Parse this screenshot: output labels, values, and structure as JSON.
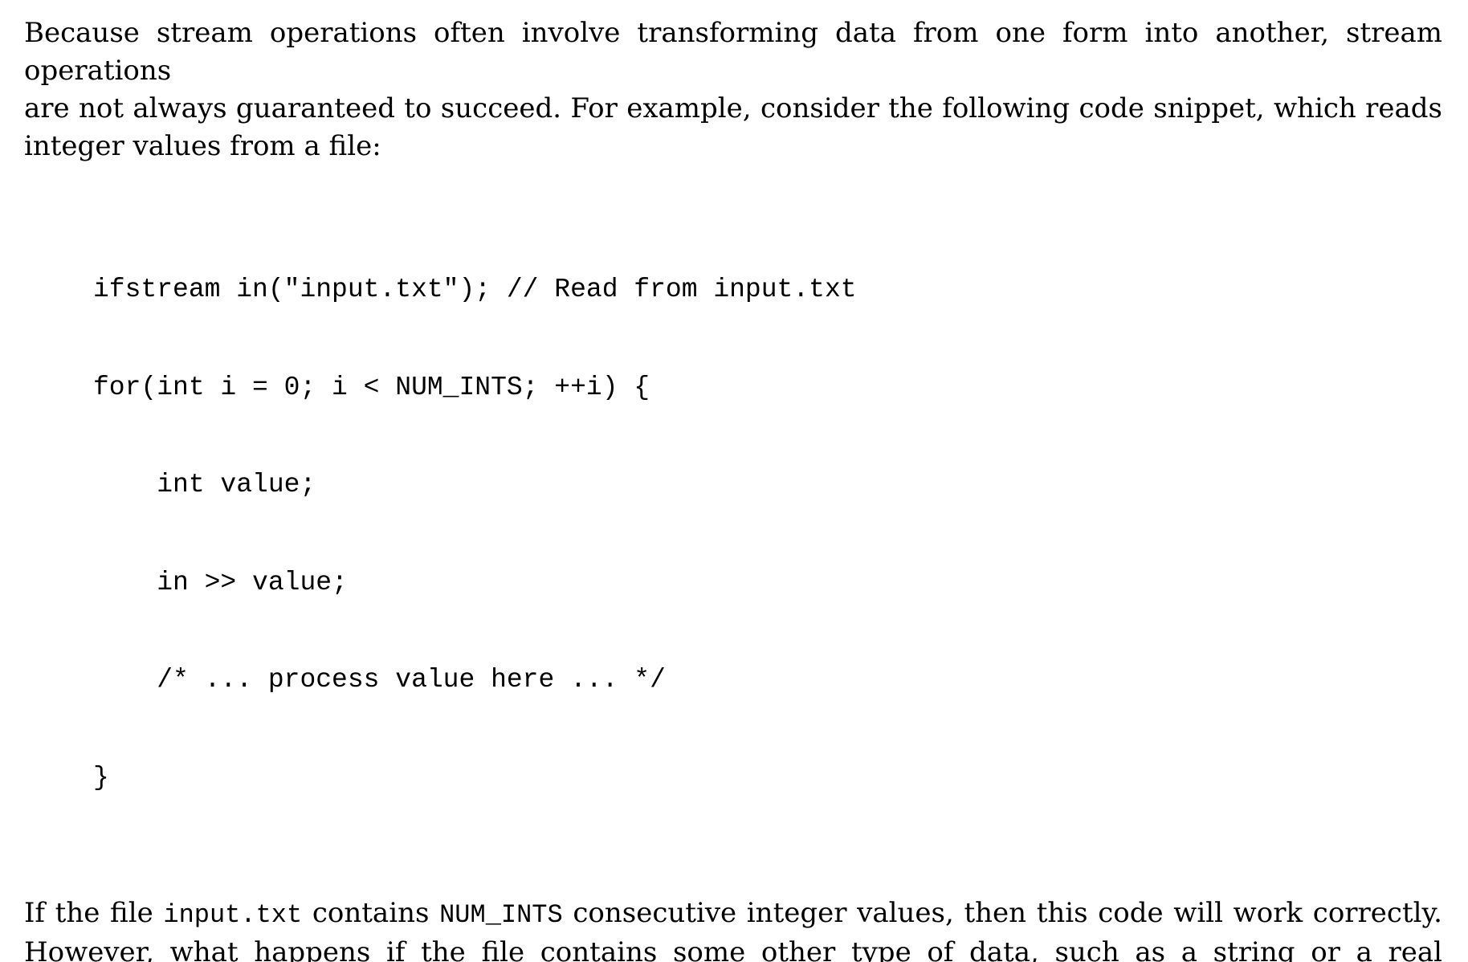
{
  "intro": {
    "line1": "Because stream operations often involve transforming data from one form into another, stream operations",
    "line2": "are not always guaranteed to succeed.  For example, consider the following code snippet, which reads",
    "line3": "integer values from a file:"
  },
  "code": {
    "lines": [
      "ifstream in(\"input.txt\"); // Read from input.txt",
      "for(int i = 0; i < NUM_INTS; ++i) {",
      "    int value;",
      "    in >> value;",
      "    /* ... process value here ... */",
      "}"
    ]
  },
  "outro": {
    "part1": "If the file ",
    "code1": "input.txt",
    "part2": " contains ",
    "code2": "NUM_INTS",
    "part3": " consecutive integer values, then this code will work correctly.",
    "line2": "However, what happens if the file contains some other type of data, such as a string or a real number?"
  }
}
